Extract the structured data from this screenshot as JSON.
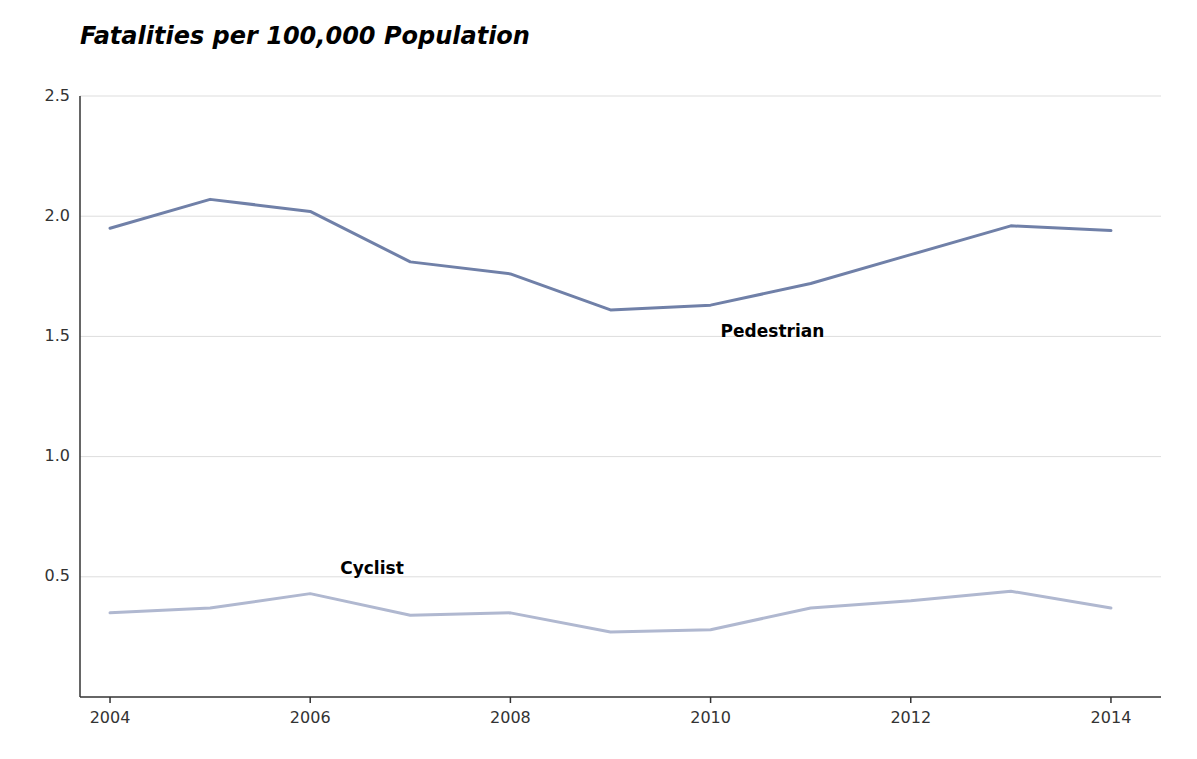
{
  "chart_data": {
    "type": "line",
    "title": "Fatalities per 100,000 Population",
    "x": [
      2004,
      2005,
      2006,
      2007,
      2008,
      2009,
      2010,
      2011,
      2012,
      2013,
      2014
    ],
    "series": [
      {
        "color": "#7080a8",
        "values": [
          1.95,
          2.07,
          2.02,
          1.81,
          1.76,
          1.61,
          1.63,
          1.72,
          1.84,
          1.96,
          1.94
        ]
      },
      {
        "color": "#b0b8d0",
        "values": [
          0.35,
          0.37,
          0.43,
          0.34,
          0.35,
          0.27,
          0.28,
          0.37,
          0.4,
          0.44,
          0.37
        ]
      }
    ],
    "annotations": [
      {
        "text": "Pedestrian",
        "x": 2010.1,
        "y": 1.55
      },
      {
        "text": "Cyclist",
        "x": 2006.3,
        "y": 0.565
      }
    ],
    "xlim": [
      2003.7,
      2014.5
    ],
    "xticks": [
      2004,
      2006,
      2008,
      2010,
      2012,
      2014
    ],
    "ylim": [
      0,
      2.5
    ],
    "yticks": [
      0.5,
      {
        "value": 1.0,
        "label": "1.0"
      },
      1.5,
      {
        "value": 2.0,
        "label": "2.0"
      },
      2.5
    ],
    "grid": "y"
  }
}
